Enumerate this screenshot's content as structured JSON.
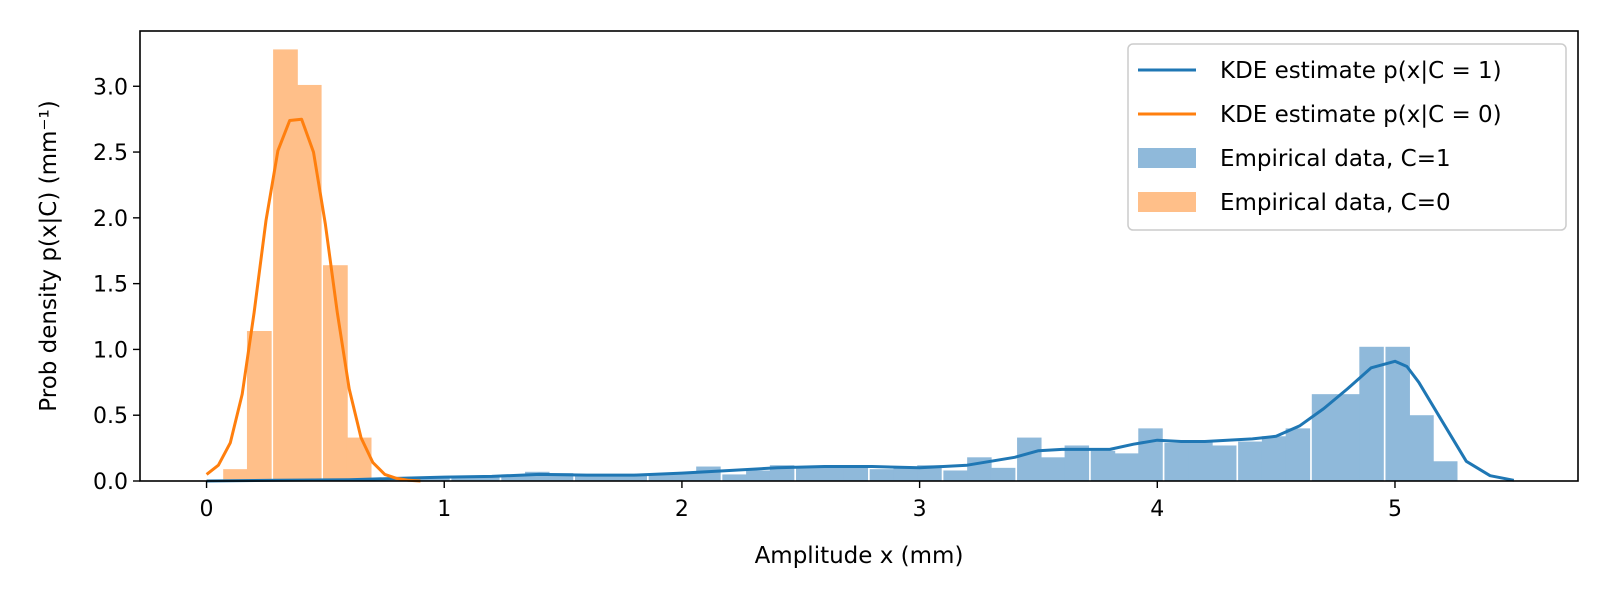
{
  "chart_data": {
    "type": "bar",
    "xlabel": "Amplitude x (mm)",
    "ylabel": "Prob density p(x|C) (mm⁻¹)",
    "xlim": [
      -0.28,
      5.77
    ],
    "ylim": [
      0,
      3.42
    ],
    "xticks": [
      0,
      1,
      2,
      3,
      4,
      5
    ],
    "yticks": [
      0.0,
      0.5,
      1.0,
      1.5,
      2.0,
      2.5,
      3.0
    ],
    "grid": false,
    "legend_position": "top-right",
    "legend": [
      {
        "label": "KDE estimate p(x|C = 1)",
        "kind": "line",
        "color": "#1f77b4"
      },
      {
        "label": "KDE estimate p(x|C = 0)",
        "kind": "line",
        "color": "#ff7f0e"
      },
      {
        "label": "Empirical data, C=1",
        "kind": "patch",
        "color": "#8fb9da"
      },
      {
        "label": "Empirical data, C=0",
        "kind": "patch",
        "color": "#ffbf89"
      }
    ],
    "histograms": [
      {
        "name": "Empirical data, C=1",
        "color": "#8fb9da",
        "bin_width": 0.103,
        "bin_starts": [
          0.62,
          0.72,
          0.82,
          0.92,
          1.03,
          1.13,
          1.24,
          1.34,
          1.44,
          1.55,
          1.65,
          1.75,
          1.86,
          1.96,
          2.06,
          2.17,
          2.27,
          2.37,
          2.48,
          2.58,
          2.68,
          2.79,
          2.89,
          2.99,
          3.1,
          3.2,
          3.3,
          3.41,
          3.51,
          3.61,
          3.72,
          3.82,
          3.92,
          4.03,
          4.13,
          4.23,
          4.34,
          4.44,
          4.54,
          4.65,
          4.75,
          4.85,
          4.96,
          5.06,
          5.16
        ],
        "densities": [
          0.01,
          0.02,
          0.03,
          0.03,
          0.04,
          0.04,
          0.05,
          0.07,
          0.06,
          0.05,
          0.04,
          0.04,
          0.05,
          0.06,
          0.11,
          0.05,
          0.08,
          0.12,
          0.11,
          0.11,
          0.1,
          0.09,
          0.1,
          0.12,
          0.08,
          0.18,
          0.1,
          0.33,
          0.18,
          0.27,
          0.23,
          0.21,
          0.4,
          0.29,
          0.31,
          0.27,
          0.3,
          0.34,
          0.4,
          0.66,
          0.66,
          1.02,
          1.02,
          0.5,
          0.15
        ]
      },
      {
        "name": "Empirical data, C=0",
        "color": "#ffbf89",
        "bin_width": 0.104,
        "bin_starts": [
          0.07,
          0.17,
          0.28,
          0.38,
          0.49,
          0.59
        ],
        "densities": [
          0.09,
          1.14,
          3.28,
          3.01,
          1.64,
          0.33
        ]
      }
    ],
    "series": [
      {
        "name": "KDE estimate p(x|C = 1)",
        "color": "#1f77b4",
        "x": [
          0.0,
          0.3,
          0.6,
          0.8,
          1.0,
          1.2,
          1.4,
          1.6,
          1.8,
          2.0,
          2.2,
          2.4,
          2.6,
          2.8,
          3.0,
          3.2,
          3.4,
          3.5,
          3.6,
          3.8,
          3.9,
          4.0,
          4.1,
          4.2,
          4.4,
          4.5,
          4.6,
          4.7,
          4.8,
          4.9,
          5.0,
          5.05,
          5.1,
          5.2,
          5.3,
          5.4,
          5.5
        ],
        "y": [
          0.0,
          0.005,
          0.01,
          0.02,
          0.03,
          0.035,
          0.05,
          0.045,
          0.045,
          0.06,
          0.08,
          0.1,
          0.11,
          0.11,
          0.1,
          0.12,
          0.18,
          0.23,
          0.24,
          0.24,
          0.28,
          0.31,
          0.3,
          0.3,
          0.32,
          0.34,
          0.42,
          0.55,
          0.7,
          0.86,
          0.91,
          0.87,
          0.75,
          0.45,
          0.15,
          0.04,
          0.005
        ]
      },
      {
        "name": "KDE estimate p(x|C = 0)",
        "color": "#ff7f0e",
        "x": [
          0.0,
          0.05,
          0.1,
          0.15,
          0.2,
          0.25,
          0.3,
          0.35,
          0.4,
          0.45,
          0.5,
          0.55,
          0.6,
          0.65,
          0.7,
          0.75,
          0.8,
          0.85,
          0.9
        ],
        "y": [
          0.05,
          0.12,
          0.29,
          0.66,
          1.28,
          1.98,
          2.51,
          2.74,
          2.75,
          2.5,
          1.95,
          1.28,
          0.7,
          0.33,
          0.14,
          0.05,
          0.02,
          0.005,
          0.0
        ]
      }
    ]
  }
}
